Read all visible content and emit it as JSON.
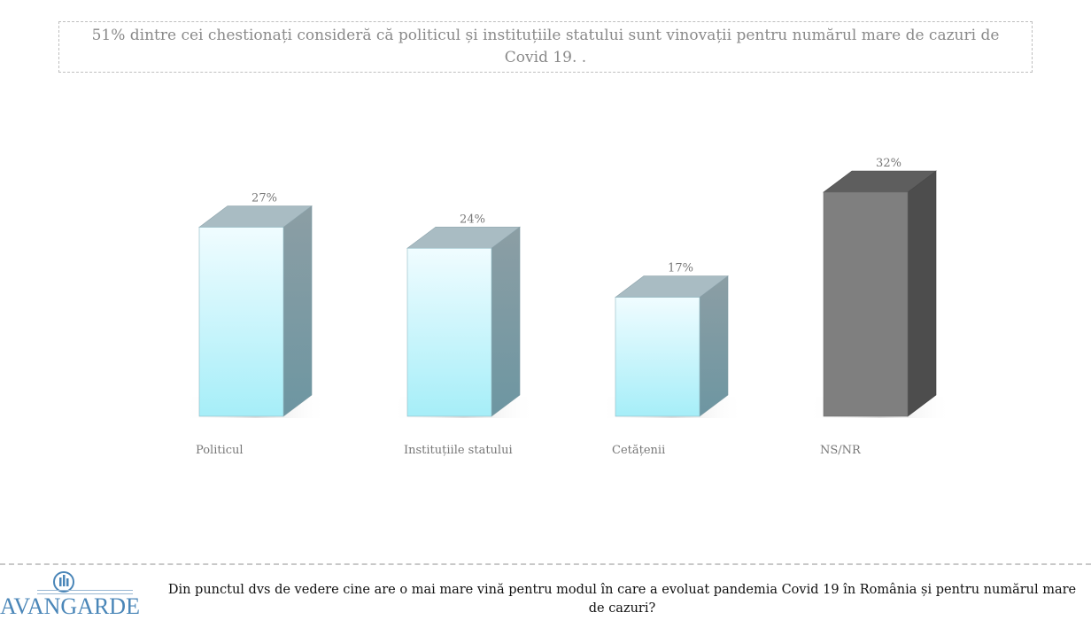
{
  "headline": "51% dintre cei chestionați consideră că politicul și instituțiile statului sunt vinovații pentru numărul mare de cazuri de Covid 19. .",
  "question": "Din punctul dvs de vedere cine are o mai mare vină pentru modul în care a evoluat pandemia Covid 19 în România și pentru numărul mare de cazuri?",
  "logo": {
    "name": "AVANGARDE",
    "icon": "avangarde-logo-icon"
  },
  "colors": {
    "light_bar": "#bff4fb",
    "dark_bar": "#7f7f7f",
    "text": "#777777"
  },
  "chart_data": {
    "type": "bar",
    "style": "3d-columns",
    "categories": [
      "Politicul",
      "Instituțiile statului",
      "Cetățenii",
      "NS/NR"
    ],
    "values": [
      27,
      24,
      17,
      32
    ],
    "value_labels": [
      "27%",
      "24%",
      "17%",
      "32%"
    ],
    "unit": "%",
    "ylim": [
      0,
      32
    ],
    "highlight": "NS/NR",
    "grid": false,
    "legend": "none"
  }
}
